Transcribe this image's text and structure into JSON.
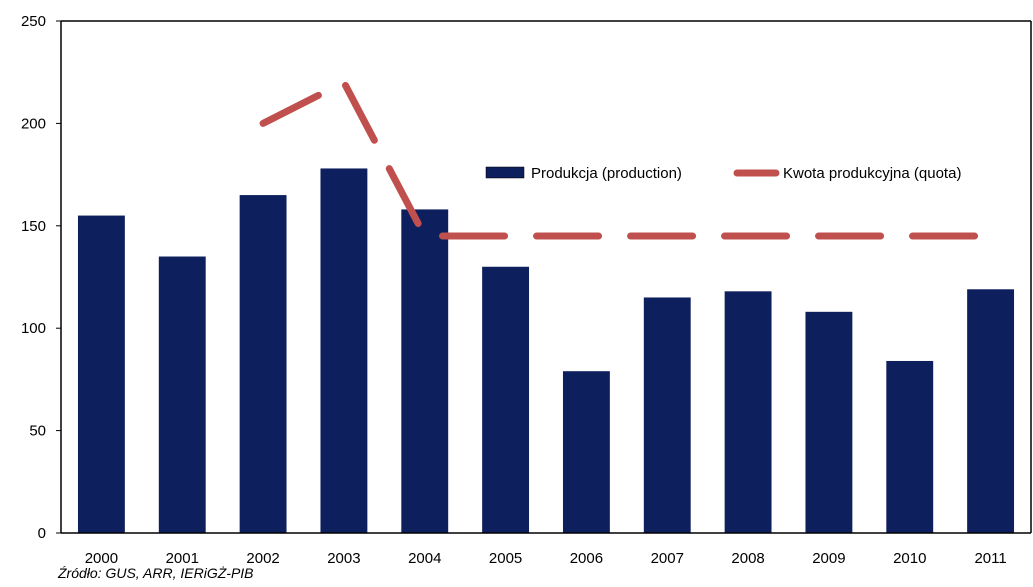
{
  "chart_data": {
    "type": "bar",
    "categories": [
      "2000",
      "2001",
      "2002",
      "2003",
      "2004",
      "2005",
      "2006",
      "2007",
      "2008",
      "2009",
      "2010",
      "2011"
    ],
    "series": [
      {
        "name": "Produkcja (production)",
        "type": "bar",
        "color": "#0d1f5c",
        "values": [
          155,
          135,
          165,
          178,
          158,
          130,
          79,
          115,
          118,
          108,
          84,
          119
        ]
      },
      {
        "name": "Kwota produkcyjna  (quota)",
        "type": "line",
        "style": "dashed",
        "color": "#c0504d",
        "values": [
          null,
          null,
          200,
          220,
          145,
          145,
          145,
          145,
          145,
          145,
          145,
          145
        ]
      }
    ],
    "ylim": [
      0,
      250
    ],
    "yticks": [
      "0",
      "50",
      "100",
      "150",
      "200",
      "250"
    ],
    "grid": false,
    "legend_position": "right"
  },
  "source": "Źródło:  GUS, ARR, IERiGŻ-PIB"
}
